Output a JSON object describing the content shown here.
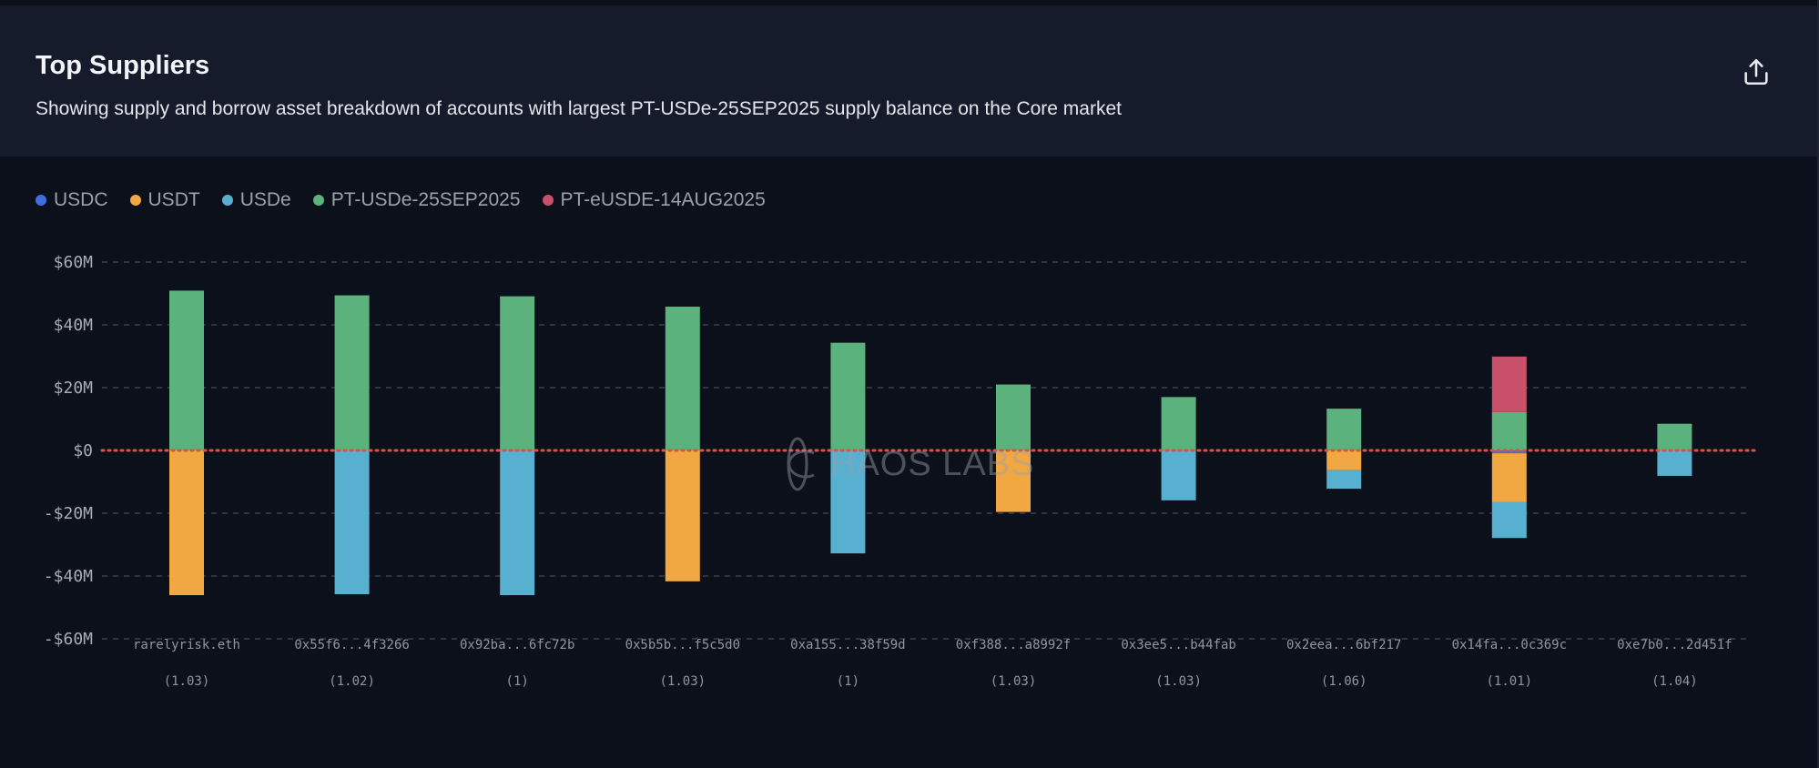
{
  "header": {
    "title": "Top Suppliers",
    "subtitle": "Showing supply and borrow asset breakdown of accounts with largest PT-USDe-25SEP2025 supply balance on the Core market",
    "share_icon": "share-icon"
  },
  "watermark": "HAOS LABS",
  "chart_data": {
    "type": "bar",
    "stacked": true,
    "title": "Top Suppliers",
    "legend_placement": "top-left",
    "ylim": [
      -60,
      60
    ],
    "yticks": [
      60,
      40,
      20,
      0,
      -20,
      -40,
      -60
    ],
    "ytick_labels": [
      "$60M",
      "$40M",
      "$20M",
      "$0",
      "-$20M",
      "-$40M",
      "-$60M"
    ],
    "grid": true,
    "categories": [
      "rarelyrisk.eth",
      "0x55f6...4f3266",
      "0x92ba...6fc72b",
      "0x5b5b...f5c5d0",
      "0xa155...38f59d",
      "0xf388...a8992f",
      "0x3ee5...b44fab",
      "0x2eea...6bf217",
      "0x14fa...0c369c",
      "0xe7b0...2d451f"
    ],
    "ratios": [
      "(1.03)",
      "(1.02)",
      "(1)",
      "(1.03)",
      "(1)",
      "(1.03)",
      "(1.03)",
      "(1.06)",
      "(1.01)",
      "(1.04)"
    ],
    "series": [
      {
        "name": "USDC",
        "color": "#3d6fe0",
        "values": [
          0,
          0,
          0,
          0,
          0,
          0,
          0,
          0,
          -0.9,
          0
        ]
      },
      {
        "name": "USDT",
        "color": "#f2a842",
        "values": [
          -46.1,
          0,
          0,
          -41.7,
          0,
          -19.6,
          0,
          -6.3,
          -15.6,
          0
        ]
      },
      {
        "name": "USDe",
        "color": "#58b0d0",
        "values": [
          0,
          -45.8,
          -46.1,
          0,
          -32.8,
          0,
          -15.9,
          -5.9,
          -11.4,
          -8.1
        ]
      },
      {
        "name": "PT-USDe-25SEP2025",
        "color": "#5bb27c",
        "values": [
          50.9,
          49.4,
          49.1,
          45.8,
          34.3,
          21.0,
          17.0,
          13.3,
          12.2,
          8.5
        ]
      },
      {
        "name": "PT-eUSDE-14AUG2025",
        "color": "#c9506a",
        "values": [
          0,
          0,
          0,
          0,
          0,
          0,
          0,
          0,
          17.7,
          0
        ]
      }
    ],
    "zero_line_color": "#e0503a"
  }
}
